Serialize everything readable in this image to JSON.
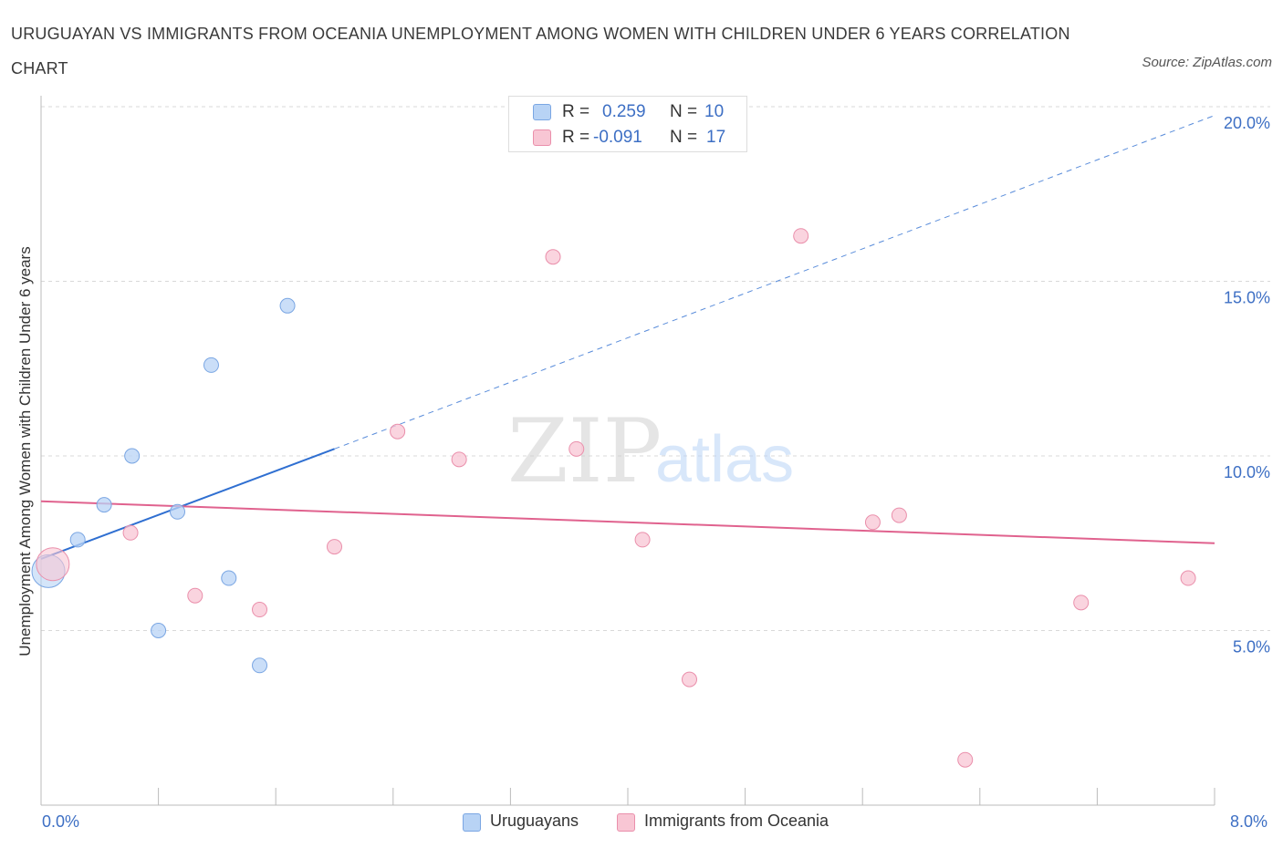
{
  "header": {
    "title": "URUGUAYAN VS IMMIGRANTS FROM OCEANIA UNEMPLOYMENT AMONG WOMEN WITH CHILDREN UNDER 6 YEARS CORRELATION CHART",
    "source": "Source: ZipAtlas.com"
  },
  "legend": {
    "r_label": "R =",
    "n_label": "N =",
    "series_a": {
      "r": "0.259",
      "n": "10"
    },
    "series_b": {
      "r": "-0.091",
      "n": "17"
    }
  },
  "colors": {
    "series_a_fill": "#b8d3f5",
    "series_a_stroke": "#7aa6e3",
    "series_a_line": "#2f6fd1",
    "series_b_fill": "#f8c6d4",
    "series_b_stroke": "#ea8fab",
    "series_b_line": "#e0628e",
    "axis_text": "#3d6fc4",
    "grid": "#d9d9d9"
  },
  "chart_data": {
    "type": "scatter",
    "title": "URUGUAYAN VS IMMIGRANTS FROM OCEANIA UNEMPLOYMENT AMONG WOMEN WITH CHILDREN UNDER 6 YEARS CORRELATION CHART",
    "xlabel": "",
    "ylabel": "Unemployment Among Women with Children Under 6 years",
    "xlim": [
      0,
      8
    ],
    "ylim": [
      0,
      20
    ],
    "x_tick_labels": [
      "0.0%",
      "8.0%"
    ],
    "y_ticks": [
      5,
      10,
      15,
      20
    ],
    "y_tick_labels": [
      "5.0%",
      "10.0%",
      "15.0%",
      "20.0%"
    ],
    "watermark": {
      "part1": "ZIP",
      "part2": "atlas"
    },
    "series": [
      {
        "name": "Uruguayans",
        "points": [
          {
            "x": 0.05,
            "y": 6.7,
            "big": true
          },
          {
            "x": 0.25,
            "y": 7.6
          },
          {
            "x": 0.43,
            "y": 8.6
          },
          {
            "x": 0.62,
            "y": 10.0
          },
          {
            "x": 0.8,
            "y": 5.0
          },
          {
            "x": 0.93,
            "y": 8.4
          },
          {
            "x": 1.16,
            "y": 12.6
          },
          {
            "x": 1.28,
            "y": 6.5
          },
          {
            "x": 1.49,
            "y": 4.0
          },
          {
            "x": 1.68,
            "y": 14.3
          }
        ],
        "trend": {
          "x0": 0.0,
          "y0": 7.05,
          "x1": 2.0,
          "y1": 10.2,
          "x2": 8.0,
          "y2": 19.75
        }
      },
      {
        "name": "Immigrants from Oceania",
        "points": [
          {
            "x": 0.08,
            "y": 6.9,
            "big": true
          },
          {
            "x": 0.61,
            "y": 7.8
          },
          {
            "x": 1.05,
            "y": 6.0
          },
          {
            "x": 1.49,
            "y": 5.6
          },
          {
            "x": 2.0,
            "y": 7.4
          },
          {
            "x": 2.43,
            "y": 10.7
          },
          {
            "x": 2.85,
            "y": 9.9
          },
          {
            "x": 3.49,
            "y": 15.7
          },
          {
            "x": 3.65,
            "y": 10.2
          },
          {
            "x": 4.1,
            "y": 7.6
          },
          {
            "x": 4.42,
            "y": 3.6
          },
          {
            "x": 5.18,
            "y": 16.3
          },
          {
            "x": 5.67,
            "y": 8.1
          },
          {
            "x": 5.85,
            "y": 8.3
          },
          {
            "x": 6.3,
            "y": 1.3
          },
          {
            "x": 7.09,
            "y": 5.8
          },
          {
            "x": 7.82,
            "y": 6.5
          }
        ],
        "trend": {
          "x0": 0.0,
          "y0": 8.7,
          "x1": 8.0,
          "y1": 7.5
        }
      }
    ]
  }
}
